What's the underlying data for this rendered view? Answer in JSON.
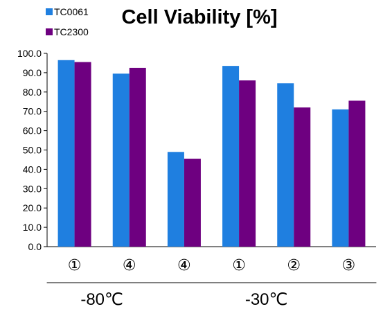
{
  "chart_data": {
    "type": "bar",
    "title": "Cell Viability [%]",
    "xlabel": "",
    "ylabel": "",
    "ylim": [
      0,
      100
    ],
    "yticks": [
      "0.0",
      "10.0",
      "20.0",
      "30.0",
      "40.0",
      "50.0",
      "60.0",
      "70.0",
      "80.0",
      "90.0",
      "100.0"
    ],
    "categories": [
      "①",
      "④",
      "④",
      "①",
      "②",
      "③"
    ],
    "series": [
      {
        "name": "TC0061",
        "color": "#1f7fe0",
        "values": [
          96.5,
          89.5,
          49.0,
          93.5,
          84.5,
          71.0
        ]
      },
      {
        "name": "TC2300",
        "color": "#6e0080",
        "values": [
          95.5,
          92.5,
          45.5,
          86.0,
          72.0,
          75.5
        ]
      }
    ],
    "groups": [
      {
        "label": "-80℃",
        "categories": [
          0,
          1
        ]
      },
      {
        "label": "-30℃",
        "categories": [
          2,
          3,
          4,
          5
        ]
      }
    ],
    "grid": false,
    "legend": "top-left"
  }
}
